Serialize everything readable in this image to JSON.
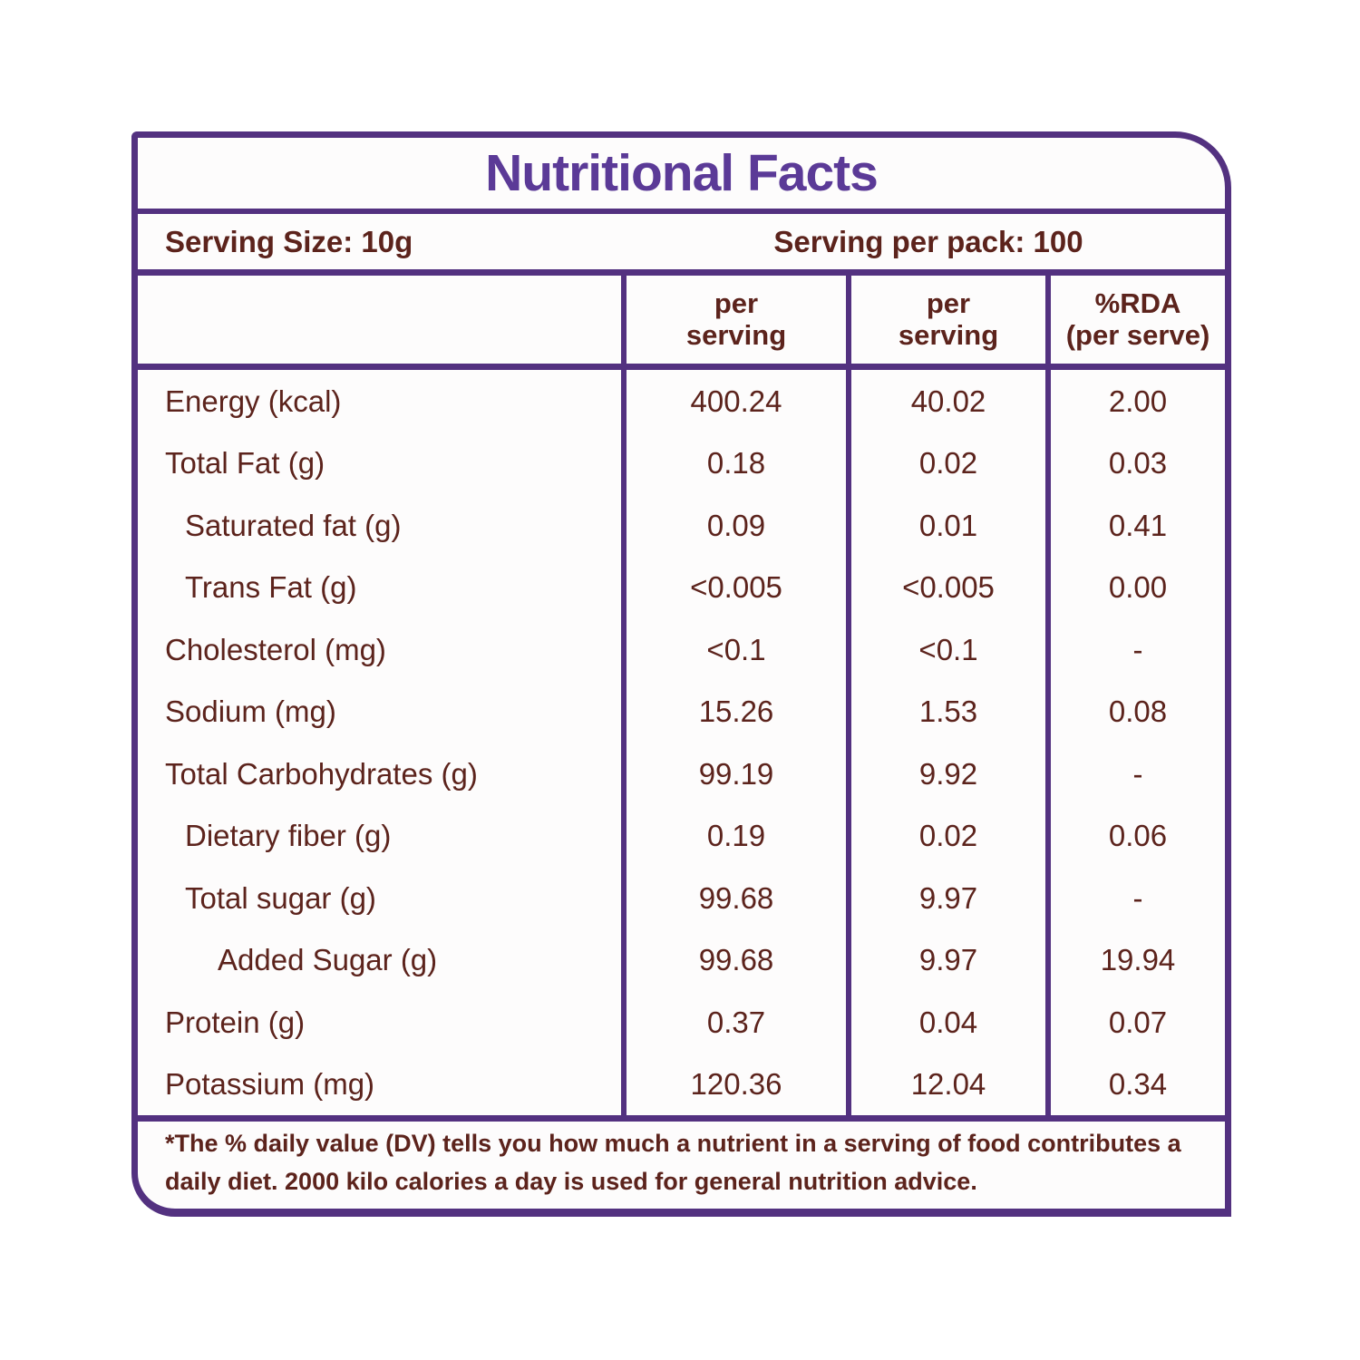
{
  "header": {
    "title": "Nutritional Facts"
  },
  "serving": {
    "size_label": "Serving Size: 10g",
    "per_pack_label": "Serving per pack: 100"
  },
  "table": {
    "columns": [
      "per\nserving",
      "per\nserving",
      "%RDA\n(per serve)"
    ],
    "rows": [
      {
        "label": "Energy (kcal)",
        "indent": 0,
        "per_serving_1": "400.24",
        "per_serving_2": "40.02",
        "rda_per_serve": "2.00"
      },
      {
        "label": "Total Fat (g)",
        "indent": 0,
        "per_serving_1": "0.18",
        "per_serving_2": "0.02",
        "rda_per_serve": "0.03"
      },
      {
        "label": "Saturated fat (g)",
        "indent": 1,
        "per_serving_1": "0.09",
        "per_serving_2": "0.01",
        "rda_per_serve": "0.41"
      },
      {
        "label": "Trans Fat (g)",
        "indent": 1,
        "per_serving_1": "<0.005",
        "per_serving_2": "<0.005",
        "rda_per_serve": "0.00"
      },
      {
        "label": "Cholesterol (mg)",
        "indent": 0,
        "per_serving_1": "<0.1",
        "per_serving_2": "<0.1",
        "rda_per_serve": "-"
      },
      {
        "label": "Sodium (mg)",
        "indent": 0,
        "per_serving_1": "15.26",
        "per_serving_2": "1.53",
        "rda_per_serve": "0.08"
      },
      {
        "label": "Total Carbohydrates  (g)",
        "indent": 0,
        "per_serving_1": "99.19",
        "per_serving_2": "9.92",
        "rda_per_serve": "-"
      },
      {
        "label": "Dietary fiber (g)",
        "indent": 1,
        "per_serving_1": "0.19",
        "per_serving_2": "0.02",
        "rda_per_serve": "0.06"
      },
      {
        "label": "Total sugar (g)",
        "indent": 1,
        "per_serving_1": "99.68",
        "per_serving_2": "9.97",
        "rda_per_serve": "-"
      },
      {
        "label": "Added Sugar (g)",
        "indent": 2,
        "per_serving_1": "99.68",
        "per_serving_2": "9.97",
        "rda_per_serve": "19.94"
      },
      {
        "label": "Protein (g)",
        "indent": 0,
        "per_serving_1": "0.37",
        "per_serving_2": "0.04",
        "rda_per_serve": "0.07"
      },
      {
        "label": "Potassium (mg)",
        "indent": 0,
        "per_serving_1": "120.36",
        "per_serving_2": "12.04",
        "rda_per_serve": "0.34"
      }
    ]
  },
  "footnote": "*The % daily value (DV) tells you how much a nutrient in a serving of food contributes a\ndaily diet. 2000 kilo calories a day is used for general nutrition advice.",
  "colors": {
    "border_purple": "#533180",
    "title_purple": "#5b3a97",
    "text_maroon": "#5c231c",
    "card_background": "#fdfcfc"
  }
}
